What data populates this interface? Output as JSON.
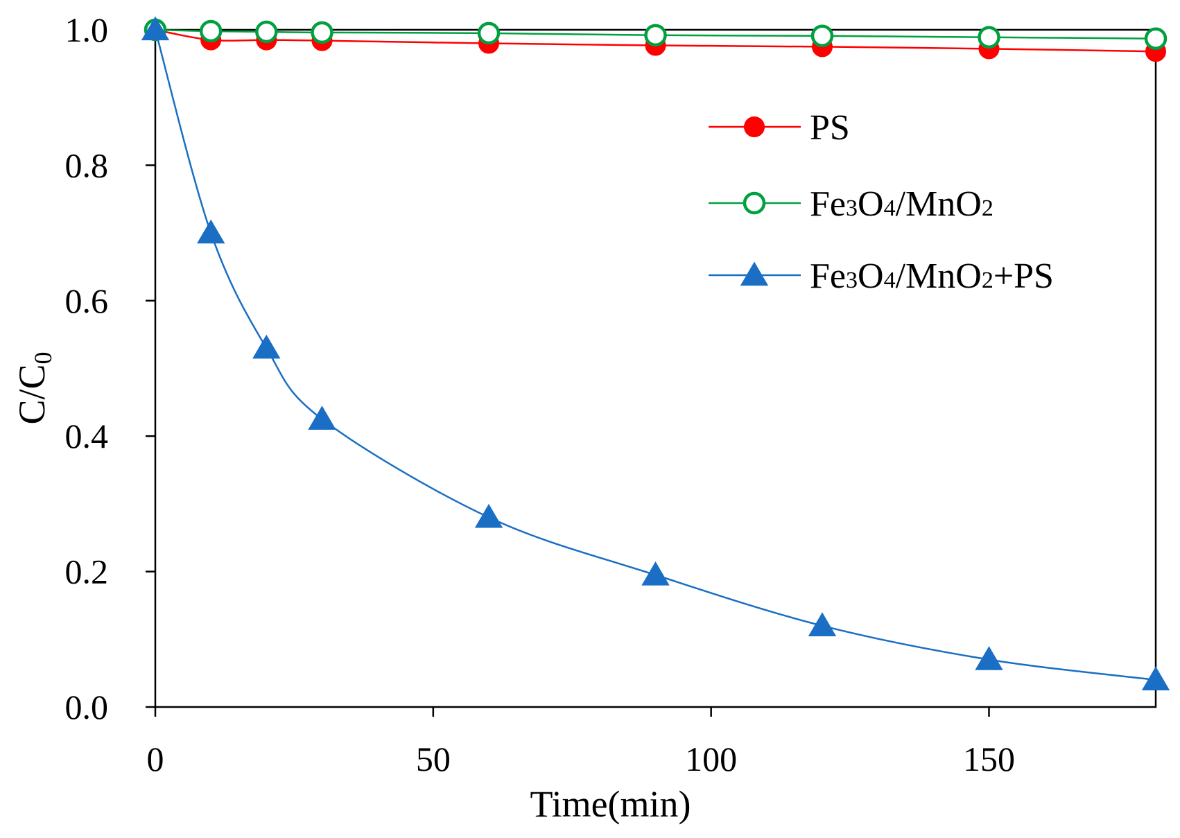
{
  "chart_data": {
    "type": "line",
    "title": "",
    "xlabel": "Time(min)",
    "ylabel": {
      "main": "C/C",
      "subscript": "0"
    },
    "xlim": [
      0,
      180
    ],
    "ylim": [
      0.0,
      1.0
    ],
    "x_ticks": [
      {
        "value": 0,
        "label": "0"
      },
      {
        "value": 50,
        "label": "50"
      },
      {
        "value": 100,
        "label": "100"
      },
      {
        "value": 150,
        "label": "150"
      }
    ],
    "y_ticks": [
      {
        "value": 0.0,
        "label": "0.0"
      },
      {
        "value": 0.2,
        "label": "0.2"
      },
      {
        "value": 0.4,
        "label": "0.4"
      },
      {
        "value": 0.6,
        "label": "0.6"
      },
      {
        "value": 0.8,
        "label": "0.8"
      },
      {
        "value": 1.0,
        "label": "1.0"
      }
    ],
    "grid": false,
    "legend_position": "upper-right",
    "series": [
      {
        "name": "PS",
        "legend_parts": [
          {
            "t": "PS",
            "sub": false
          }
        ],
        "color": "#ff0000",
        "marker": "filled-circle",
        "x": [
          0,
          10,
          20,
          30,
          60,
          90,
          120,
          150,
          180
        ],
        "y": [
          1.0,
          0.985,
          0.985,
          0.984,
          0.98,
          0.977,
          0.975,
          0.972,
          0.968
        ]
      },
      {
        "name": "Fe3O4/MnO2",
        "legend_parts": [
          {
            "t": "Fe",
            "sub": false
          },
          {
            "t": "3",
            "sub": true
          },
          {
            "t": "O",
            "sub": false
          },
          {
            "t": "4",
            "sub": true
          },
          {
            "t": "/MnO",
            "sub": false
          },
          {
            "t": "2",
            "sub": true
          }
        ],
        "color": "#00a040",
        "marker": "open-circle",
        "x": [
          0,
          10,
          20,
          30,
          60,
          90,
          120,
          150,
          180
        ],
        "y": [
          1.0,
          0.998,
          0.997,
          0.996,
          0.995,
          0.992,
          0.991,
          0.989,
          0.987
        ]
      },
      {
        "name": "Fe3O4/MnO2+PS",
        "legend_parts": [
          {
            "t": "Fe",
            "sub": false
          },
          {
            "t": "3",
            "sub": true
          },
          {
            "t": "O",
            "sub": false
          },
          {
            "t": "4",
            "sub": true
          },
          {
            "t": "/MnO",
            "sub": false
          },
          {
            "t": "2",
            "sub": true
          },
          {
            "t": "+PS",
            "sub": false
          }
        ],
        "color": "#1a6fc4",
        "marker": "filled-triangle",
        "x": [
          0,
          10,
          20,
          30,
          60,
          90,
          120,
          150,
          180
        ],
        "y": [
          1.0,
          0.7,
          0.53,
          0.425,
          0.28,
          0.195,
          0.12,
          0.07,
          0.04
        ]
      }
    ]
  }
}
